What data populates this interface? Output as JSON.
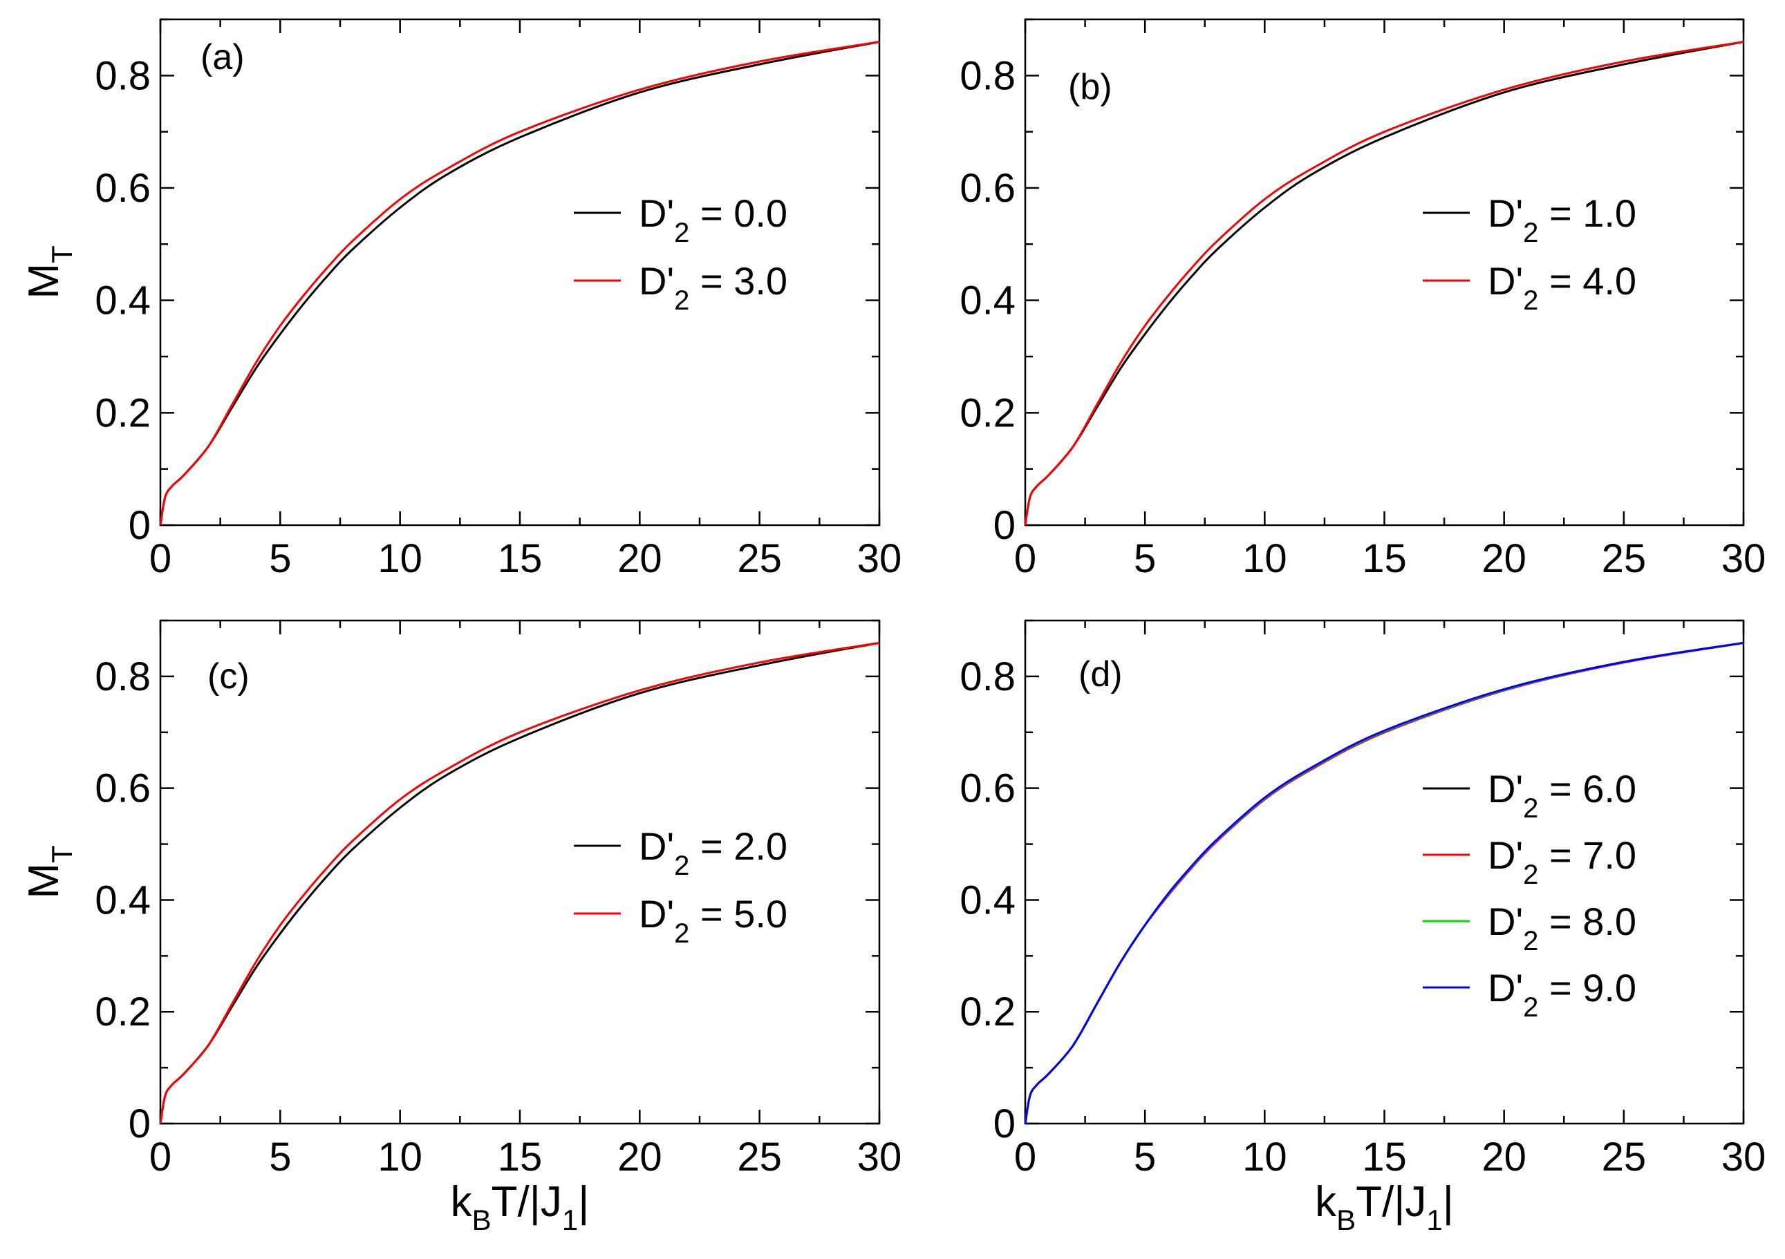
{
  "figure": {
    "ylabel": {
      "main": "M",
      "sub": "T"
    },
    "xlabel": {
      "k": "k",
      "B": "B",
      "rest": "T/|J",
      "one": "1",
      "bar": "|"
    }
  },
  "chart_data": [
    {
      "type": "line",
      "panel": "(a)",
      "xlim": [
        0,
        30
      ],
      "ylim": [
        0,
        0.9
      ],
      "xticks": [
        "0",
        "5",
        "10",
        "15",
        "20",
        "25",
        "30"
      ],
      "yticks": [
        "0",
        "0.2",
        "0.4",
        "0.6",
        "0.8"
      ],
      "ylabel": "M_T",
      "xlabel": "",
      "legend": "right",
      "x": [
        0,
        0.2,
        0.5,
        1,
        2,
        3,
        4,
        5,
        6,
        7,
        8,
        10,
        12,
        15,
        20,
        25,
        30
      ],
      "series": [
        {
          "name": "D'2 = 0.0",
          "label_prefix": "D'",
          "label_sub": "2",
          "label_value": " = 0.0",
          "color": "#000000",
          "values": [
            0,
            0.05,
            0.07,
            0.09,
            0.14,
            0.21,
            0.28,
            0.34,
            0.395,
            0.445,
            0.49,
            0.565,
            0.625,
            0.69,
            0.77,
            0.82,
            0.86
          ]
        },
        {
          "name": "D'2 = 3.0",
          "label_prefix": "D'",
          "label_sub": "2",
          "label_value": " = 3.0",
          "color": "#ff0000",
          "values": [
            0,
            0.05,
            0.07,
            0.09,
            0.14,
            0.215,
            0.29,
            0.355,
            0.41,
            0.46,
            0.505,
            0.58,
            0.635,
            0.7,
            0.775,
            0.825,
            0.86
          ]
        }
      ]
    },
    {
      "type": "line",
      "panel": "(b)",
      "xlim": [
        0,
        30
      ],
      "ylim": [
        0,
        0.9
      ],
      "xticks": [
        "0",
        "5",
        "10",
        "15",
        "20",
        "25",
        "30"
      ],
      "yticks": [
        "0",
        "0.2",
        "0.4",
        "0.6",
        "0.8"
      ],
      "ylabel": "",
      "xlabel": "",
      "legend": "right",
      "x": [
        0,
        0.2,
        0.5,
        1,
        2,
        3,
        4,
        5,
        6,
        7,
        8,
        10,
        12,
        15,
        20,
        25,
        30
      ],
      "series": [
        {
          "name": "D'2 = 1.0",
          "label_prefix": "D'",
          "label_sub": "2",
          "label_value": " = 1.0",
          "color": "#000000",
          "values": [
            0,
            0.05,
            0.07,
            0.09,
            0.14,
            0.21,
            0.28,
            0.34,
            0.395,
            0.445,
            0.49,
            0.565,
            0.625,
            0.69,
            0.77,
            0.82,
            0.86
          ]
        },
        {
          "name": "D'2 = 4.0",
          "label_prefix": "D'",
          "label_sub": "2",
          "label_value": " = 4.0",
          "color": "#ff0000",
          "values": [
            0,
            0.05,
            0.07,
            0.09,
            0.14,
            0.215,
            0.29,
            0.355,
            0.41,
            0.46,
            0.505,
            0.58,
            0.635,
            0.7,
            0.775,
            0.825,
            0.86
          ]
        }
      ]
    },
    {
      "type": "line",
      "panel": "(c)",
      "xlim": [
        0,
        30
      ],
      "ylim": [
        0,
        0.9
      ],
      "xticks": [
        "0",
        "5",
        "10",
        "15",
        "20",
        "25",
        "30"
      ],
      "yticks": [
        "0",
        "0.2",
        "0.4",
        "0.6",
        "0.8"
      ],
      "ylabel": "M_T",
      "xlabel": "k_B T/|J_1|",
      "legend": "right",
      "x": [
        0,
        0.2,
        0.5,
        1,
        2,
        3,
        4,
        5,
        6,
        7,
        8,
        10,
        12,
        15,
        20,
        25,
        30
      ],
      "series": [
        {
          "name": "D'2 = 2.0",
          "label_prefix": "D'",
          "label_sub": "2",
          "label_value": " = 2.0",
          "color": "#000000",
          "values": [
            0,
            0.05,
            0.07,
            0.09,
            0.14,
            0.21,
            0.28,
            0.34,
            0.395,
            0.445,
            0.49,
            0.565,
            0.625,
            0.69,
            0.77,
            0.82,
            0.86
          ]
        },
        {
          "name": "D'2 = 5.0",
          "label_prefix": "D'",
          "label_sub": "2",
          "label_value": " = 5.0",
          "color": "#ff0000",
          "values": [
            0,
            0.05,
            0.07,
            0.09,
            0.14,
            0.215,
            0.29,
            0.355,
            0.41,
            0.46,
            0.505,
            0.58,
            0.635,
            0.7,
            0.775,
            0.825,
            0.86
          ]
        }
      ]
    },
    {
      "type": "line",
      "panel": "(d)",
      "xlim": [
        0,
        30
      ],
      "ylim": [
        0,
        0.9
      ],
      "xticks": [
        "0",
        "5",
        "10",
        "15",
        "20",
        "25",
        "30"
      ],
      "yticks": [
        "0",
        "0.2",
        "0.4",
        "0.6",
        "0.8"
      ],
      "ylabel": "",
      "xlabel": "k_B T/|J_1|",
      "legend": "right",
      "x": [
        0,
        0.2,
        0.5,
        1,
        2,
        3,
        4,
        5,
        6,
        7,
        8,
        10,
        12,
        15,
        20,
        25,
        30
      ],
      "series": [
        {
          "name": "D'2 = 6.0",
          "label_prefix": "D'",
          "label_sub": "2",
          "label_value": " = 6.0",
          "color": "#000000",
          "values": [
            0,
            0.05,
            0.07,
            0.09,
            0.14,
            0.215,
            0.29,
            0.355,
            0.41,
            0.46,
            0.505,
            0.58,
            0.635,
            0.7,
            0.775,
            0.825,
            0.86
          ]
        },
        {
          "name": "D'2 = 7.0",
          "label_prefix": "D'",
          "label_sub": "2",
          "label_value": " = 7.0",
          "color": "#ff0000",
          "values": [
            0,
            0.05,
            0.07,
            0.09,
            0.14,
            0.215,
            0.29,
            0.355,
            0.41,
            0.46,
            0.505,
            0.58,
            0.635,
            0.7,
            0.775,
            0.825,
            0.86
          ]
        },
        {
          "name": "D'2 = 8.0",
          "label_prefix": "D'",
          "label_sub": "2",
          "label_value": " = 8.0",
          "color": "#00dd00",
          "values": [
            0,
            0.05,
            0.07,
            0.09,
            0.14,
            0.215,
            0.29,
            0.355,
            0.412,
            0.462,
            0.507,
            0.582,
            0.637,
            0.702,
            0.776,
            0.826,
            0.86
          ]
        },
        {
          "name": "D'2 = 9.0",
          "label_prefix": "D'",
          "label_sub": "2",
          "label_value": " = 9.0",
          "color": "#0000ff",
          "values": [
            0,
            0.05,
            0.07,
            0.09,
            0.14,
            0.215,
            0.29,
            0.355,
            0.413,
            0.463,
            0.508,
            0.583,
            0.638,
            0.703,
            0.777,
            0.826,
            0.86
          ]
        }
      ]
    }
  ]
}
